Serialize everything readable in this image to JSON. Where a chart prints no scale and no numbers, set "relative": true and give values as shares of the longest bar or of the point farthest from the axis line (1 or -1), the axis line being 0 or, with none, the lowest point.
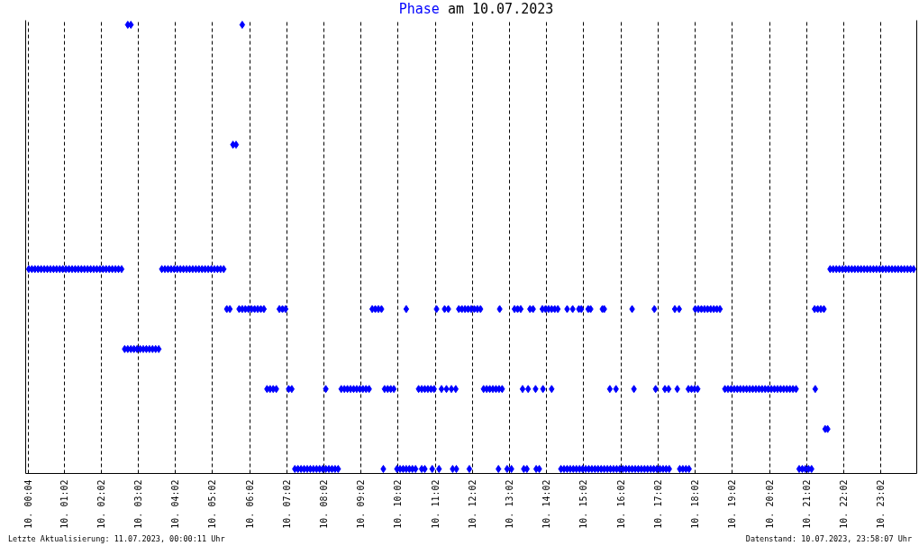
{
  "chart_data": {
    "type": "scatter",
    "title": "am 10.07.2023",
    "annotations": [
      "Letzte Aktualisierung: 11.07.2023, 00:00:11 Uhr",
      "Datenstand: 10.07.2023, 23:58:07 Uhr"
    ],
    "relative": true,
    "grid": "x",
    "legend": "top",
    "marker": "diamond",
    "xlim": [
      "2023-07-10T00:00",
      "2023-07-11T00:00"
    ],
    "xticks": [
      {
        "value": "2023-07-10T00:04",
        "label": "10. 00:04"
      },
      {
        "value": "2023-07-10T01:02",
        "label": "10. 01:02"
      },
      {
        "value": "2023-07-10T02:02",
        "label": "10. 02:02"
      },
      {
        "value": "2023-07-10T03:02",
        "label": "10. 03:02"
      },
      {
        "value": "2023-07-10T04:02",
        "label": "10. 04:02"
      },
      {
        "value": "2023-07-10T05:02",
        "label": "10. 05:02"
      },
      {
        "value": "2023-07-10T06:02",
        "label": "10. 06:02"
      },
      {
        "value": "2023-07-10T07:02",
        "label": "10. 07:02"
      },
      {
        "value": "2023-07-10T08:02",
        "label": "10. 08:02"
      },
      {
        "value": "2023-07-10T09:02",
        "label": "10. 09:02"
      },
      {
        "value": "2023-07-10T10:02",
        "label": "10. 10:02"
      },
      {
        "value": "2023-07-10T11:02",
        "label": "10. 11:02"
      },
      {
        "value": "2023-07-10T12:02",
        "label": "10. 12:02"
      },
      {
        "value": "2023-07-10T13:02",
        "label": "10. 13:02"
      },
      {
        "value": "2023-07-10T14:02",
        "label": "10. 14:02"
      },
      {
        "value": "2023-07-10T15:02",
        "label": "10. 15:02"
      },
      {
        "value": "2023-07-10T16:02",
        "label": "10. 16:02"
      },
      {
        "value": "2023-07-10T17:02",
        "label": "10. 17:02"
      },
      {
        "value": "2023-07-10T18:02",
        "label": "10. 18:02"
      },
      {
        "value": "2023-07-10T19:02",
        "label": "10. 19:02"
      },
      {
        "value": "2023-07-10T20:02",
        "label": "10. 20:02"
      },
      {
        "value": "2023-07-10T21:02",
        "label": "10. 21:02"
      },
      {
        "value": "2023-07-10T22:02",
        "label": "10. 22:02"
      },
      {
        "value": "2023-07-10T23:02",
        "label": "10. 23:02"
      }
    ],
    "series": [
      {
        "name": "Phase",
        "color": "#0000ff",
        "x": [
          "2023-07-10T07:15",
          "2023-07-10T07:20",
          "2023-07-10T07:25",
          "2023-07-10T07:30",
          "2023-07-10T07:35",
          "2023-07-10T07:40",
          "2023-07-10T07:45",
          "2023-07-10T07:50",
          "2023-07-10T07:55",
          "2023-07-10T08:00",
          "2023-07-10T08:05",
          "2023-07-10T08:10",
          "2023-07-10T08:15",
          "2023-07-10T08:20",
          "2023-07-10T08:25",
          "2023-07-10T09:38",
          "2023-07-10T10:00",
          "2023-07-10T10:05",
          "2023-07-10T10:10",
          "2023-07-10T10:15",
          "2023-07-10T10:20",
          "2023-07-10T10:25",
          "2023-07-10T10:30",
          "2023-07-10T10:40",
          "2023-07-10T10:45",
          "2023-07-10T10:57",
          "2023-07-10T11:08",
          "2023-07-10T11:30",
          "2023-07-10T11:36",
          "2023-07-10T11:57",
          "2023-07-10T12:44",
          "2023-07-10T12:58",
          "2023-07-10T13:05",
          "2023-07-10T13:25",
          "2023-07-10T13:30",
          "2023-07-10T13:45",
          "2023-07-10T13:50",
          "2023-07-10T14:25",
          "2023-07-10T14:30",
          "2023-07-10T14:35",
          "2023-07-10T14:40",
          "2023-07-10T14:45",
          "2023-07-10T14:50",
          "2023-07-10T14:55",
          "2023-07-10T15:00",
          "2023-07-10T15:05",
          "2023-07-10T15:10",
          "2023-07-10T15:15",
          "2023-07-10T15:20",
          "2023-07-10T15:25",
          "2023-07-10T15:30",
          "2023-07-10T15:35",
          "2023-07-10T15:40",
          "2023-07-10T15:45",
          "2023-07-10T15:50",
          "2023-07-10T15:55",
          "2023-07-10T16:00",
          "2023-07-10T16:05",
          "2023-07-10T16:10",
          "2023-07-10T16:15",
          "2023-07-10T16:20",
          "2023-07-10T16:25",
          "2023-07-10T16:30",
          "2023-07-10T16:35",
          "2023-07-10T16:40",
          "2023-07-10T16:45",
          "2023-07-10T16:50",
          "2023-07-10T16:55",
          "2023-07-10T17:00",
          "2023-07-10T17:05",
          "2023-07-10T17:10",
          "2023-07-10T17:15",
          "2023-07-10T17:20",
          "2023-07-10T17:37",
          "2023-07-10T17:42",
          "2023-07-10T17:47",
          "2023-07-10T17:52",
          "2023-07-10T20:50",
          "2023-07-10T20:55",
          "2023-07-10T21:00",
          "2023-07-10T21:05",
          "2023-07-10T21:10",
          "2023-07-10T21:32",
          "2023-07-10T21:36",
          "2023-07-10T06:30",
          "2023-07-10T06:35",
          "2023-07-10T06:40",
          "2023-07-10T06:45",
          "2023-07-10T07:05",
          "2023-07-10T07:10",
          "2023-07-10T08:05",
          "2023-07-10T08:30",
          "2023-07-10T08:35",
          "2023-07-10T08:40",
          "2023-07-10T08:45",
          "2023-07-10T08:50",
          "2023-07-10T08:55",
          "2023-07-10T09:00",
          "2023-07-10T09:05",
          "2023-07-10T09:10",
          "2023-07-10T09:15",
          "2023-07-10T09:40",
          "2023-07-10T09:45",
          "2023-07-10T09:50",
          "2023-07-10T09:55",
          "2023-07-10T10:35",
          "2023-07-10T10:40",
          "2023-07-10T10:45",
          "2023-07-10T10:50",
          "2023-07-10T10:55",
          "2023-07-10T11:00",
          "2023-07-10T11:12",
          "2023-07-10T11:20",
          "2023-07-10T11:28",
          "2023-07-10T11:35",
          "2023-07-10T12:20",
          "2023-07-10T12:25",
          "2023-07-10T12:30",
          "2023-07-10T12:35",
          "2023-07-10T12:40",
          "2023-07-10T12:45",
          "2023-07-10T12:50",
          "2023-07-10T13:23",
          "2023-07-10T13:32",
          "2023-07-10T13:44",
          "2023-07-10T13:56",
          "2023-07-10T14:10",
          "2023-07-10T15:44",
          "2023-07-10T15:54",
          "2023-07-10T16:23",
          "2023-07-10T16:58",
          "2023-07-10T17:13",
          "2023-07-10T17:19",
          "2023-07-10T17:33",
          "2023-07-10T17:51",
          "2023-07-10T17:56",
          "2023-07-10T18:01",
          "2023-07-10T18:06",
          "2023-07-10T18:50",
          "2023-07-10T18:55",
          "2023-07-10T19:00",
          "2023-07-10T19:05",
          "2023-07-10T19:10",
          "2023-07-10T19:15",
          "2023-07-10T19:20",
          "2023-07-10T19:25",
          "2023-07-10T19:30",
          "2023-07-10T19:35",
          "2023-07-10T19:40",
          "2023-07-10T19:45",
          "2023-07-10T19:50",
          "2023-07-10T19:55",
          "2023-07-10T20:00",
          "2023-07-10T20:05",
          "2023-07-10T20:10",
          "2023-07-10T20:15",
          "2023-07-10T20:20",
          "2023-07-10T20:25",
          "2023-07-10T20:30",
          "2023-07-10T20:35",
          "2023-07-10T20:40",
          "2023-07-10T20:45",
          "2023-07-10T21:16",
          "2023-07-10T02:40",
          "2023-07-10T02:45",
          "2023-07-10T02:50",
          "2023-07-10T02:55",
          "2023-07-10T03:00",
          "2023-07-10T03:05",
          "2023-07-10T03:10",
          "2023-07-10T03:15",
          "2023-07-10T03:20",
          "2023-07-10T03:25",
          "2023-07-10T03:30",
          "2023-07-10T03:35",
          "2023-07-10T05:25",
          "2023-07-10T05:30",
          "2023-07-10T05:45",
          "2023-07-10T05:50",
          "2023-07-10T05:55",
          "2023-07-10T06:00",
          "2023-07-10T06:05",
          "2023-07-10T06:10",
          "2023-07-10T06:15",
          "2023-07-10T06:20",
          "2023-07-10T06:25",
          "2023-07-10T06:50",
          "2023-07-10T06:55",
          "2023-07-10T07:00",
          "2023-07-10T09:20",
          "2023-07-10T09:25",
          "2023-07-10T09:30",
          "2023-07-10T09:35",
          "2023-07-10T10:15",
          "2023-07-10T11:04",
          "2023-07-10T11:17",
          "2023-07-10T11:23",
          "2023-07-10T11:40",
          "2023-07-10T11:45",
          "2023-07-10T11:50",
          "2023-07-10T11:55",
          "2023-07-10T12:00",
          "2023-07-10T12:05",
          "2023-07-10T12:10",
          "2023-07-10T12:15",
          "2023-07-10T12:46",
          "2023-07-10T13:10",
          "2023-07-10T13:15",
          "2023-07-10T13:20",
          "2023-07-10T13:35",
          "2023-07-10T13:40",
          "2023-07-10T13:55",
          "2023-07-10T14:00",
          "2023-07-10T14:05",
          "2023-07-10T14:10",
          "2023-07-10T14:15",
          "2023-07-10T14:20",
          "2023-07-10T14:35",
          "2023-07-10T14:44",
          "2023-07-10T14:54",
          "2023-07-10T14:58",
          "2023-07-10T15:09",
          "2023-07-10T15:13",
          "2023-07-10T15:32",
          "2023-07-10T15:35",
          "2023-07-10T16:20",
          "2023-07-10T16:56",
          "2023-07-10T17:29",
          "2023-07-10T17:36",
          "2023-07-10T18:02",
          "2023-07-10T18:07",
          "2023-07-10T18:12",
          "2023-07-10T18:17",
          "2023-07-10T18:22",
          "2023-07-10T18:27",
          "2023-07-10T18:32",
          "2023-07-10T18:37",
          "2023-07-10T18:42",
          "2023-07-10T21:15",
          "2023-07-10T21:20",
          "2023-07-10T21:25",
          "2023-07-10T21:30",
          "2023-07-10T00:05",
          "2023-07-10T00:10",
          "2023-07-10T00:15",
          "2023-07-10T00:20",
          "2023-07-10T00:25",
          "2023-07-10T00:30",
          "2023-07-10T00:35",
          "2023-07-10T00:40",
          "2023-07-10T00:45",
          "2023-07-10T00:50",
          "2023-07-10T00:55",
          "2023-07-10T01:00",
          "2023-07-10T01:05",
          "2023-07-10T01:10",
          "2023-07-10T01:15",
          "2023-07-10T01:20",
          "2023-07-10T01:25",
          "2023-07-10T01:30",
          "2023-07-10T01:35",
          "2023-07-10T01:40",
          "2023-07-10T01:45",
          "2023-07-10T01:50",
          "2023-07-10T01:55",
          "2023-07-10T02:00",
          "2023-07-10T02:05",
          "2023-07-10T02:10",
          "2023-07-10T02:15",
          "2023-07-10T02:20",
          "2023-07-10T02:25",
          "2023-07-10T02:30",
          "2023-07-10T02:35",
          "2023-07-10T03:40",
          "2023-07-10T03:45",
          "2023-07-10T03:50",
          "2023-07-10T03:55",
          "2023-07-10T04:00",
          "2023-07-10T04:05",
          "2023-07-10T04:10",
          "2023-07-10T04:15",
          "2023-07-10T04:20",
          "2023-07-10T04:25",
          "2023-07-10T04:30",
          "2023-07-10T04:35",
          "2023-07-10T04:40",
          "2023-07-10T04:45",
          "2023-07-10T04:50",
          "2023-07-10T04:55",
          "2023-07-10T05:00",
          "2023-07-10T05:05",
          "2023-07-10T05:10",
          "2023-07-10T05:15",
          "2023-07-10T05:20",
          "2023-07-10T21:40",
          "2023-07-10T21:45",
          "2023-07-10T21:50",
          "2023-07-10T21:55",
          "2023-07-10T22:00",
          "2023-07-10T22:05",
          "2023-07-10T22:10",
          "2023-07-10T22:15",
          "2023-07-10T22:20",
          "2023-07-10T22:25",
          "2023-07-10T22:30",
          "2023-07-10T22:35",
          "2023-07-10T22:40",
          "2023-07-10T22:45",
          "2023-07-10T22:50",
          "2023-07-10T22:55",
          "2023-07-10T23:00",
          "2023-07-10T23:05",
          "2023-07-10T23:10",
          "2023-07-10T23:15",
          "2023-07-10T23:20",
          "2023-07-10T23:25",
          "2023-07-10T23:30",
          "2023-07-10T23:35",
          "2023-07-10T23:40",
          "2023-07-10T23:45",
          "2023-07-10T23:50",
          "2023-07-10T23:55",
          "2023-07-10T05:35",
          "2023-07-10T05:40",
          "2023-07-10T02:45",
          "2023-07-10T02:50",
          "2023-07-10T05:50"
        ],
        "values": [
          0,
          0,
          0,
          0,
          0,
          0,
          0,
          0,
          0,
          0,
          0,
          0,
          0,
          0,
          0,
          0,
          0,
          0,
          0,
          0,
          0,
          0,
          0,
          0,
          0,
          0,
          0,
          0,
          0,
          0,
          0,
          0,
          0,
          0,
          0,
          0,
          0,
          0,
          0,
          0,
          0,
          0,
          0,
          0,
          0,
          0,
          0,
          0,
          0,
          0,
          0,
          0,
          0,
          0,
          0,
          0,
          0,
          0,
          0,
          0,
          0,
          0,
          0,
          0,
          0,
          0,
          0,
          0,
          0,
          0,
          0,
          0,
          0,
          0,
          0,
          0,
          0,
          0,
          0,
          0,
          0,
          0,
          0.09,
          0.09,
          0.18,
          0.18,
          0.18,
          0.18,
          0.18,
          0.18,
          0.18,
          0.18,
          0.18,
          0.18,
          0.18,
          0.18,
          0.18,
          0.18,
          0.18,
          0.18,
          0.18,
          0.18,
          0.18,
          0.18,
          0.18,
          0.18,
          0.18,
          0.18,
          0.18,
          0.18,
          0.18,
          0.18,
          0.18,
          0.18,
          0.18,
          0.18,
          0.18,
          0.18,
          0.18,
          0.18,
          0.18,
          0.18,
          0.18,
          0.18,
          0.18,
          0.18,
          0.18,
          0.18,
          0.18,
          0.18,
          0.18,
          0.18,
          0.18,
          0.18,
          0.18,
          0.18,
          0.18,
          0.18,
          0.18,
          0.18,
          0.18,
          0.18,
          0.18,
          0.18,
          0.18,
          0.18,
          0.18,
          0.18,
          0.18,
          0.18,
          0.18,
          0.18,
          0.18,
          0.18,
          0.18,
          0.18,
          0.18,
          0.18,
          0.18,
          0.18,
          0.18,
          0.18,
          0.18,
          0.27,
          0.27,
          0.27,
          0.27,
          0.27,
          0.27,
          0.27,
          0.27,
          0.27,
          0.27,
          0.27,
          0.27,
          0.36,
          0.36,
          0.36,
          0.36,
          0.36,
          0.36,
          0.36,
          0.36,
          0.36,
          0.36,
          0.36,
          0.36,
          0.36,
          0.36,
          0.36,
          0.36,
          0.36,
          0.36,
          0.36,
          0.36,
          0.36,
          0.36,
          0.36,
          0.36,
          0.36,
          0.36,
          0.36,
          0.36,
          0.36,
          0.36,
          0.36,
          0.36,
          0.36,
          0.36,
          0.36,
          0.36,
          0.36,
          0.36,
          0.36,
          0.36,
          0.36,
          0.36,
          0.36,
          0.36,
          0.36,
          0.36,
          0.36,
          0.36,
          0.36,
          0.36,
          0.36,
          0.36,
          0.36,
          0.36,
          0.36,
          0.36,
          0.36,
          0.36,
          0.36,
          0.36,
          0.36,
          0.36,
          0.36,
          0.36,
          0.36,
          0.36,
          0.36,
          0.45,
          0.45,
          0.45,
          0.45,
          0.45,
          0.45,
          0.45,
          0.45,
          0.45,
          0.45,
          0.45,
          0.45,
          0.45,
          0.45,
          0.45,
          0.45,
          0.45,
          0.45,
          0.45,
          0.45,
          0.45,
          0.45,
          0.45,
          0.45,
          0.45,
          0.45,
          0.45,
          0.45,
          0.45,
          0.45,
          0.45,
          0.45,
          0.45,
          0.45,
          0.45,
          0.45,
          0.45,
          0.45,
          0.45,
          0.45,
          0.45,
          0.45,
          0.45,
          0.45,
          0.45,
          0.45,
          0.45,
          0.45,
          0.45,
          0.45,
          0.45,
          0.45,
          0.45,
          0.45,
          0.45,
          0.45,
          0.45,
          0.45,
          0.45,
          0.45,
          0.45,
          0.45,
          0.45,
          0.45,
          0.45,
          0.45,
          0.45,
          0.45,
          0.45,
          0.45,
          0.45,
          0.45,
          0.45,
          0.45,
          0.45,
          0.45,
          0.45,
          0.45,
          0.45,
          0.45,
          0.73,
          0.73,
          1,
          1,
          1
        ]
      }
    ]
  }
}
